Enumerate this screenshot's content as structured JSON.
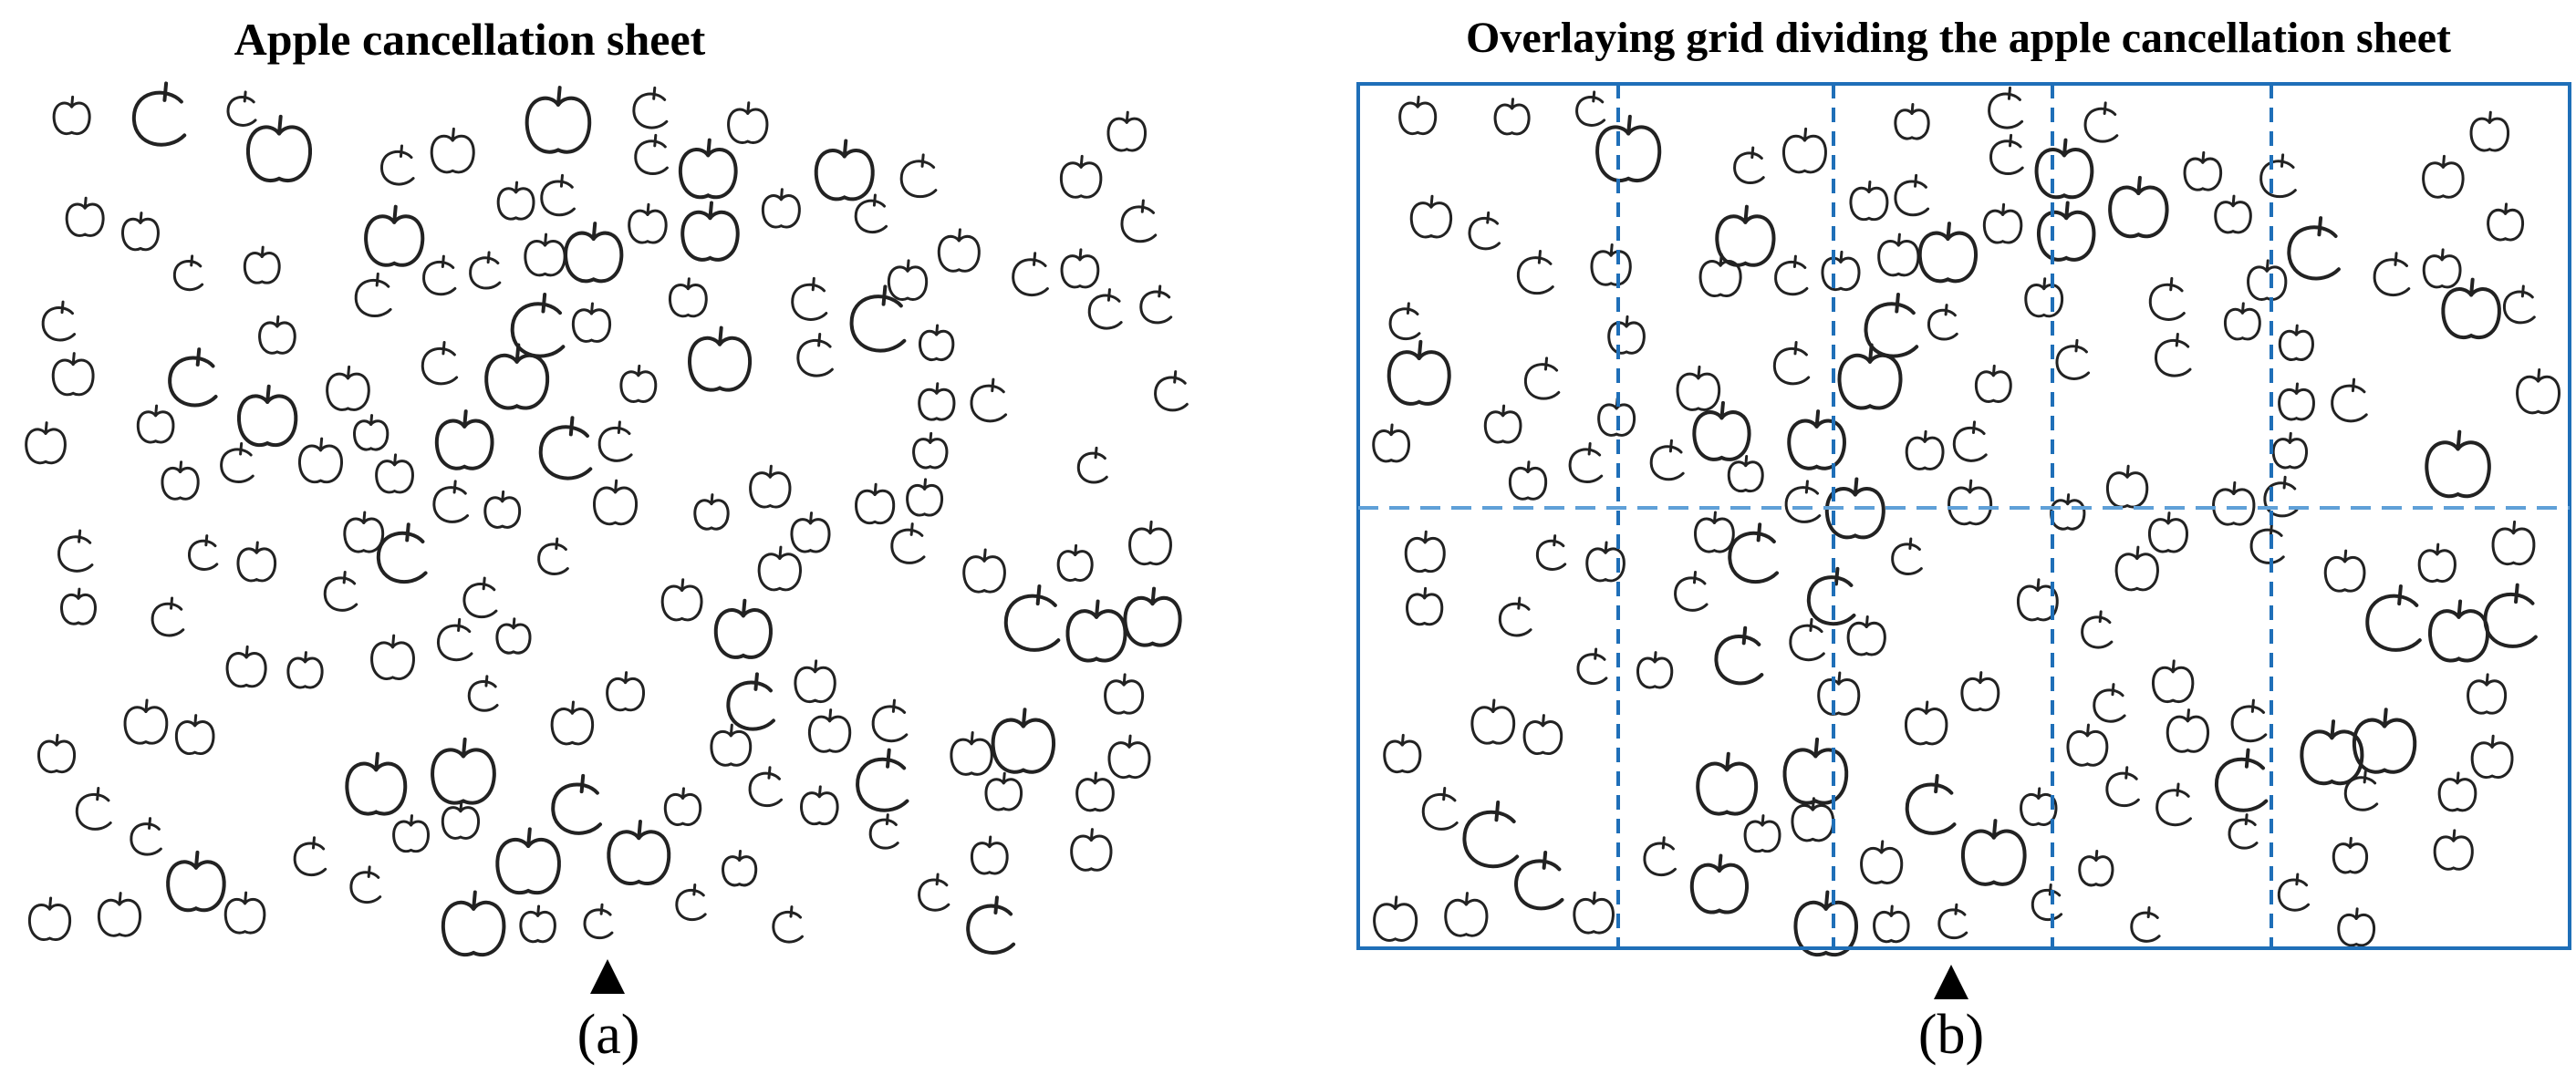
{
  "panel_a": {
    "title": "Apple cancellation sheet",
    "caption": "(a)",
    "marker_icon": "triangle-up-icon"
  },
  "panel_b": {
    "title": "Overlaying grid dividing the apple cancellation sheet",
    "caption": "(b)",
    "marker_icon": "triangle-up-icon",
    "grid": {
      "columns": 5,
      "rows": 2
    }
  },
  "colors": {
    "grid_border": "#1f6fb8",
    "grid_vertical_dashes": "#1f6fb8",
    "grid_horizontal_dash": "#5fa0d8",
    "apple_outline": "#222222"
  }
}
